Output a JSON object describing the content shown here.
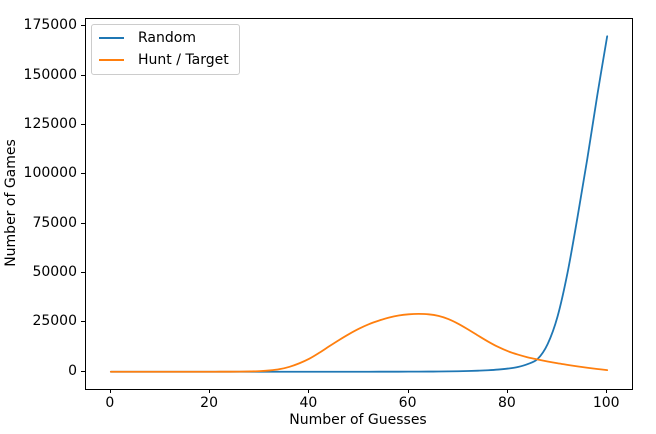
{
  "figure": {
    "background": "#ffffff",
    "spine_color": "#000000",
    "text_color": "#000000"
  },
  "chart_data": {
    "type": "line",
    "title": "",
    "xlabel": "Number of Guesses",
    "ylabel": "Number of Games",
    "xlim": [
      -5,
      105
    ],
    "ylim": [
      -8750,
      178750
    ],
    "grid": false,
    "legend_position": "upper-left",
    "x_ticks": [
      0,
      20,
      40,
      60,
      80,
      100
    ],
    "x_tick_labels": [
      "0",
      "20",
      "40",
      "60",
      "80",
      "100"
    ],
    "y_ticks": [
      0,
      25000,
      50000,
      75000,
      100000,
      125000,
      150000,
      175000
    ],
    "y_tick_labels": [
      "0",
      "25000",
      "50000",
      "75000",
      "100000",
      "125000",
      "150000",
      "175000"
    ],
    "x": [
      0,
      2,
      4,
      6,
      8,
      10,
      12,
      14,
      16,
      18,
      20,
      22,
      24,
      26,
      28,
      30,
      32,
      34,
      36,
      38,
      40,
      42,
      44,
      46,
      48,
      50,
      52,
      54,
      56,
      58,
      60,
      62,
      64,
      66,
      68,
      70,
      72,
      74,
      76,
      78,
      80,
      82,
      84,
      86,
      88,
      90,
      92,
      94,
      96,
      98,
      100
    ],
    "series": [
      {
        "name": "Random",
        "color": "#1f77b4",
        "values": [
          0,
          0,
          0,
          0,
          0,
          0,
          0,
          0,
          0,
          0,
          0,
          0,
          0,
          0,
          0,
          0,
          0,
          0,
          0,
          1,
          1,
          1,
          2,
          3,
          4,
          6,
          9,
          13,
          19,
          28,
          40,
          55,
          80,
          120,
          170,
          250,
          360,
          520,
          760,
          1100,
          1600,
          2400,
          3900,
          6500,
          14000,
          28000,
          50000,
          78000,
          108000,
          140000,
          170000
        ]
      },
      {
        "name": "Hunt / Target",
        "color": "#ff7f0e",
        "values": [
          0,
          0,
          0,
          0,
          0,
          0,
          0,
          0,
          0,
          0,
          0,
          10,
          30,
          70,
          150,
          300,
          650,
          1300,
          2500,
          4300,
          6600,
          9600,
          12900,
          16100,
          19100,
          21800,
          24100,
          25900,
          27400,
          28500,
          29100,
          29300,
          29100,
          28300,
          26700,
          24300,
          21400,
          18300,
          15300,
          12600,
          10400,
          8700,
          7300,
          6200,
          5200,
          4300,
          3500,
          2700,
          2000,
          1400,
          800
        ]
      }
    ]
  }
}
